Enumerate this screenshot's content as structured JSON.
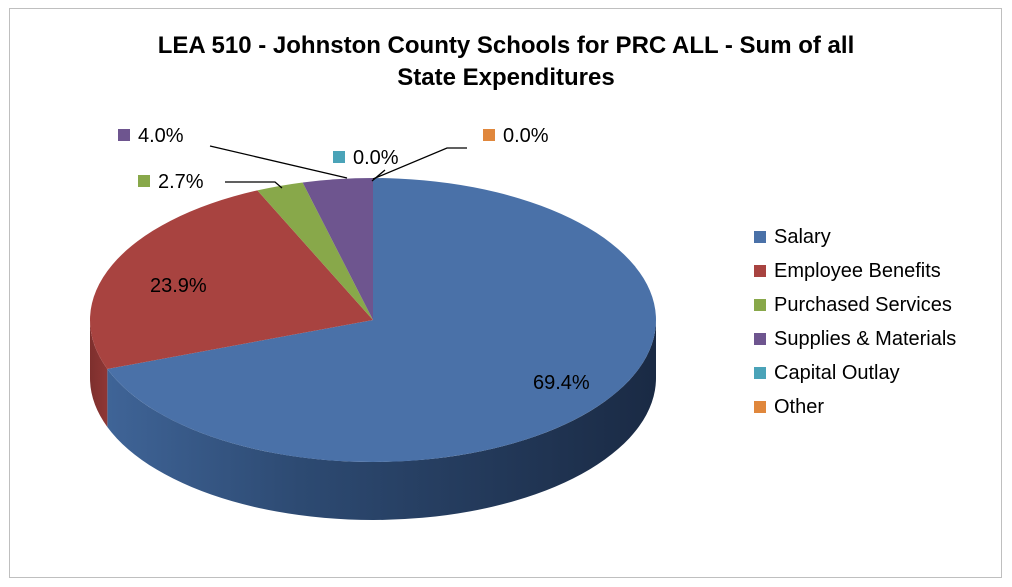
{
  "chart_data": {
    "type": "pie",
    "title": "LEA 510 - Johnston County Schools for PRC ALL - Sum of all State Expenditures",
    "title_lines": [
      "LEA 510 - Johnston County Schools for PRC ALL - Sum of all",
      "State Expenditures"
    ],
    "three_d": true,
    "legend_position": "right",
    "slices": [
      {
        "name": "Salary",
        "value": 69.4,
        "label": "69.4%",
        "color": "#4a71a8"
      },
      {
        "name": "Employee Benefits",
        "value": 23.9,
        "label": "23.9%",
        "color": "#a84340"
      },
      {
        "name": "Purchased Services",
        "value": 2.7,
        "label": "2.7%",
        "color": "#88a84a"
      },
      {
        "name": "Supplies & Materials",
        "value": 4.0,
        "label": "4.0%",
        "color": "#6e558f"
      },
      {
        "name": "Capital Outlay",
        "value": 0.0,
        "label": "0.0%",
        "color": "#4aa3b8"
      },
      {
        "name": "Other",
        "value": 0.0,
        "label": "0.0%",
        "color": "#e0873c"
      }
    ]
  }
}
